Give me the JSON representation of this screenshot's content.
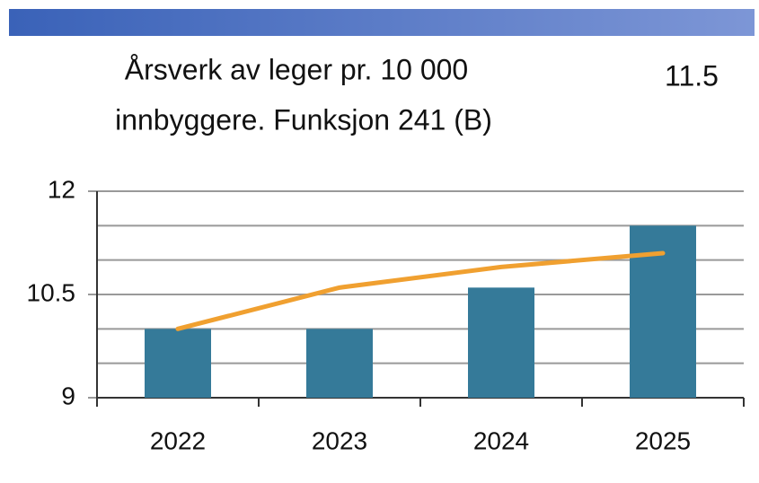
{
  "chart_data": {
    "type": "combo",
    "title": [
      "Årsverk av leger pr. 10 000",
      "innbyggere. Funksjon 241 (B)"
    ],
    "annotation": "11.5",
    "categories": [
      "2022",
      "2023",
      "2024",
      "2025"
    ],
    "series": [
      {
        "type": "bar",
        "color": "#357a99",
        "values": [
          10.0,
          10.0,
          10.6,
          11.5
        ]
      },
      {
        "type": "line",
        "color": "#f0a030",
        "values": [
          10.0,
          10.6,
          10.9,
          11.1
        ]
      }
    ],
    "ylim": [
      9,
      12
    ],
    "yticks": [
      9,
      10.5,
      12
    ],
    "grid": true,
    "minor_grid": [
      9.5,
      10,
      11,
      11.5
    ]
  }
}
